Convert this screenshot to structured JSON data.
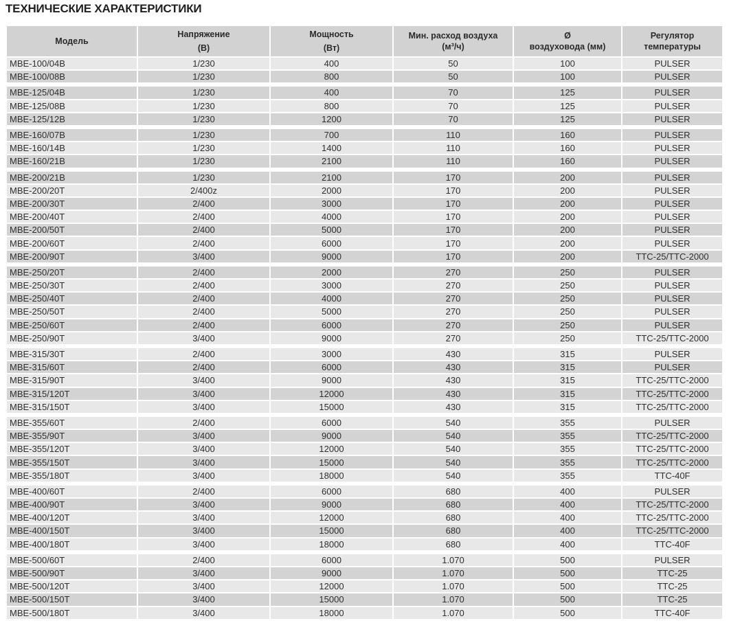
{
  "title": "ТЕХНИЧЕСКИЕ ХАРАКТЕРИСТИКИ",
  "headers": [
    {
      "line1": "Модель",
      "line2": ""
    },
    {
      "line1": "Напряжение",
      "line2": "(В)"
    },
    {
      "line1": "Мощность",
      "line2": "(Вт)"
    },
    {
      "line1": "Мин. расход воздуха",
      "line2": "(м³/ч)"
    },
    {
      "line1": "Ø",
      "line2": "воздуховода (мм)"
    },
    {
      "line1": "Регулятор",
      "line2": "температуры"
    }
  ],
  "groups": [
    [
      [
        "MBE-100/04B",
        "1/230",
        "400",
        "50",
        "100",
        "PULSER"
      ],
      [
        "MBE-100/08B",
        "1/230",
        "800",
        "50",
        "100",
        "PULSER"
      ]
    ],
    [
      [
        "MBE-125/04B",
        "1/230",
        "400",
        "70",
        "125",
        "PULSER"
      ],
      [
        "MBE-125/08B",
        "1/230",
        "800",
        "70",
        "125",
        "PULSER"
      ],
      [
        "MBE-125/12B",
        "1/230",
        "1200",
        "70",
        "125",
        "PULSER"
      ]
    ],
    [
      [
        "MBE-160/07B",
        "1/230",
        "700",
        "110",
        "160",
        "PULSER"
      ],
      [
        "MBE-160/14B",
        "1/230",
        "1400",
        "110",
        "160",
        "PULSER"
      ],
      [
        "MBE-160/21B",
        "1/230",
        "2100",
        "110",
        "160",
        "PULSER"
      ]
    ],
    [
      [
        "MBE-200/21B",
        "1/230",
        "2100",
        "170",
        "200",
        "PULSER"
      ],
      [
        "MBE-200/20T",
        "2/400z",
        "2000",
        "170",
        "200",
        "PULSER"
      ],
      [
        "MBE-200/30T",
        "2/400",
        "3000",
        "170",
        "200",
        "PULSER"
      ],
      [
        "MBE-200/40T",
        "2/400",
        "4000",
        "170",
        "200",
        "PULSER"
      ],
      [
        "MBE-200/50T",
        "2/400",
        "5000",
        "170",
        "200",
        "PULSER"
      ],
      [
        "MBE-200/60T",
        "2/400",
        "6000",
        "170",
        "200",
        "PULSER"
      ],
      [
        "MBE-200/90T",
        "3/400",
        "9000",
        "170",
        "200",
        "TTC-25/TTC-2000"
      ]
    ],
    [
      [
        "MBE-250/20T",
        "2/400",
        "2000",
        "270",
        "250",
        "PULSER"
      ],
      [
        "MBE-250/30T",
        "2/400",
        "3000",
        "270",
        "250",
        "PULSER"
      ],
      [
        "MBE-250/40T",
        "2/400",
        "4000",
        "270",
        "250",
        "PULSER"
      ],
      [
        "MBE-250/50T",
        "2/400",
        "5000",
        "270",
        "250",
        "PULSER"
      ],
      [
        "MBE-250/60T",
        "2/400",
        "6000",
        "270",
        "250",
        "PULSER"
      ],
      [
        "MBE-250/90T",
        "3/400",
        "9000",
        "270",
        "250",
        "TTC-25/TTC-2000"
      ]
    ],
    [
      [
        "MBE-315/30T",
        "2/400",
        "3000",
        "430",
        "315",
        "PULSER"
      ],
      [
        "MBE-315/60T",
        "2/400",
        "6000",
        "430",
        "315",
        "PULSER"
      ],
      [
        "MBE-315/90T",
        "3/400",
        "9000",
        "430",
        "315",
        "TTC-25/TTC-2000"
      ],
      [
        "MBE-315/120T",
        "3/400",
        "12000",
        "430",
        "315",
        "TTC-25/TTC-2000"
      ],
      [
        "MBE-315/150T",
        "3/400",
        "15000",
        "430",
        "315",
        "TTC-25/TTC-2000"
      ]
    ],
    [
      [
        "MBE-355/60T",
        "2/400",
        "6000",
        "540",
        "355",
        "PULSER"
      ],
      [
        "MBE-355/90T",
        "3/400",
        "9000",
        "540",
        "355",
        "TTC-25/TTC-2000"
      ],
      [
        "MBE-355/120T",
        "3/400",
        "12000",
        "540",
        "355",
        "TTC-25/TTC-2000"
      ],
      [
        "MBE-355/150T",
        "3/400",
        "15000",
        "540",
        "355",
        "TTC-25/TTC-2000"
      ],
      [
        "MBE-355/180T",
        "3/400",
        "18000",
        "540",
        "355",
        "TTC-40F"
      ]
    ],
    [
      [
        "MBE-400/60T",
        "2/400",
        "6000",
        "680",
        "400",
        "PULSER"
      ],
      [
        "MBE-400/90T",
        "3/400",
        "9000",
        "680",
        "400",
        "TTC-25/TTC-2000"
      ],
      [
        "MBE-400/120T",
        "3/400",
        "12000",
        "680",
        "400",
        "TTC-25/TTC-2000"
      ],
      [
        "MBE-400/150T",
        "3/400",
        "15000",
        "680",
        "400",
        "TTC-25/TTC-2000"
      ],
      [
        "MBE-400/180T",
        "3/400",
        "18000",
        "680",
        "400",
        "TTC-40F"
      ]
    ],
    [
      [
        "MBE-500/60T",
        "2/400",
        "6000",
        "1.070",
        "500",
        "PULSER"
      ],
      [
        "MBE-500/90T",
        "3/400",
        "9000",
        "1.070",
        "500",
        "TTC-25"
      ],
      [
        "MBE-500/120T",
        "3/400",
        "12000",
        "1.070",
        "500",
        "TTC-25"
      ],
      [
        "MBE-500/150T",
        "3/400",
        "15000",
        "1.070",
        "500",
        "TTC-25"
      ],
      [
        "MBE-500/180T",
        "3/400",
        "18000",
        "1.070",
        "500",
        "TTC-40F"
      ]
    ]
  ]
}
